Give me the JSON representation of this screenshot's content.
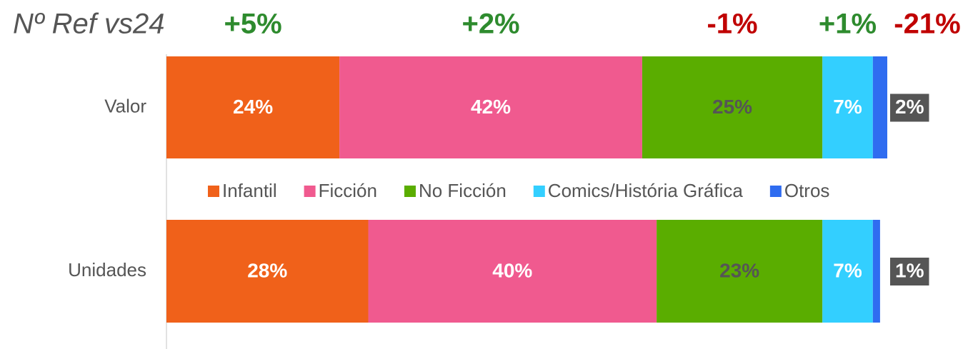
{
  "chart_data": {
    "type": "stacked-bar-horizontal",
    "title": "Nº Ref vs24",
    "categories": [
      "Valor",
      "Unidades"
    ],
    "xlim": [
      0,
      100
    ],
    "series": [
      {
        "name": "Infantil",
        "color": "#f0611a",
        "label_color": "#ffffff",
        "values": [
          24,
          28
        ],
        "value_labels": [
          "24%",
          "28%"
        ],
        "change": "+5%",
        "change_color": "#2e8b2e"
      },
      {
        "name": "Ficción",
        "color": "#f05a8f",
        "label_color": "#ffffff",
        "values": [
          42,
          40
        ],
        "value_labels": [
          "42%",
          "40%"
        ],
        "change": "+2%",
        "change_color": "#2e8b2e"
      },
      {
        "name": "No Ficción",
        "color": "#5aad00",
        "label_color": "#555555",
        "values": [
          25,
          23
        ],
        "value_labels": [
          "25%",
          "23%"
        ],
        "change": "-1%",
        "change_color": "#c00000"
      },
      {
        "name": "Comics/História Gráfica",
        "color": "#33cfff",
        "label_color": "#ffffff",
        "values": [
          7,
          7
        ],
        "value_labels": [
          "7%",
          "7%"
        ],
        "change": "+1%",
        "change_color": "#2e8b2e"
      },
      {
        "name": "Otros",
        "color": "#2f6cf0",
        "label_color": "#ffffff",
        "values": [
          2,
          1
        ],
        "value_labels": [
          "2%",
          "1%"
        ],
        "change": "-21%",
        "change_color": "#c00000"
      }
    ]
  }
}
